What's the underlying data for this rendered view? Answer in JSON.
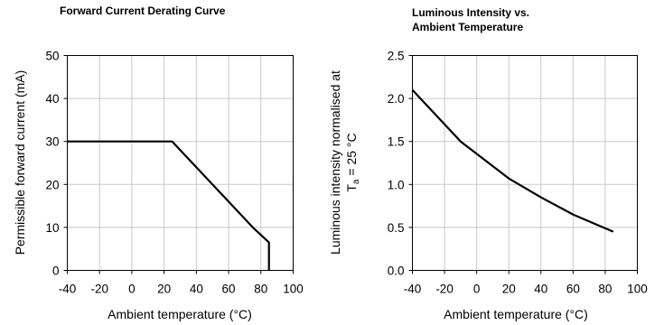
{
  "chart_data": [
    {
      "type": "line",
      "title": "Forward Current Derating  Curve",
      "xlabel": "Ambient temperature (°C)",
      "ylabel": "Permissible forward current (mA)",
      "xlim": [
        -40,
        100
      ],
      "ylim": [
        0,
        50
      ],
      "xticks": [
        "-40",
        "-20",
        "0",
        "20",
        "40",
        "60",
        "80",
        "100"
      ],
      "yticks": [
        "0",
        "10",
        "20",
        "30",
        "40",
        "50"
      ],
      "grid": true,
      "series": [
        {
          "x": [
            -40,
            25,
            75,
            85,
            85
          ],
          "y": [
            30,
            30,
            10,
            6.5,
            0
          ]
        }
      ]
    },
    {
      "type": "line",
      "title_lines": [
        "Luminous Intensity vs.",
        "Ambient Temperature"
      ],
      "xlabel": "Ambient temperature (°C)",
      "ylabel_lines": [
        "Luminous intensity normalised at",
        "T",
        "a",
        " = 25 °C"
      ],
      "xlim": [
        -40,
        100
      ],
      "ylim": [
        0,
        2.5
      ],
      "xticks": [
        "-40",
        "-20",
        "0",
        "20",
        "40",
        "60",
        "80",
        "100"
      ],
      "yticks": [
        "0.0",
        "0.5",
        "1.0",
        "1.5",
        "2.0",
        "2.5"
      ],
      "grid": true,
      "series": [
        {
          "x": [
            -40,
            -10,
            20,
            40,
            60,
            85
          ],
          "y": [
            2.1,
            1.5,
            1.07,
            0.85,
            0.65,
            0.45
          ]
        }
      ]
    }
  ]
}
